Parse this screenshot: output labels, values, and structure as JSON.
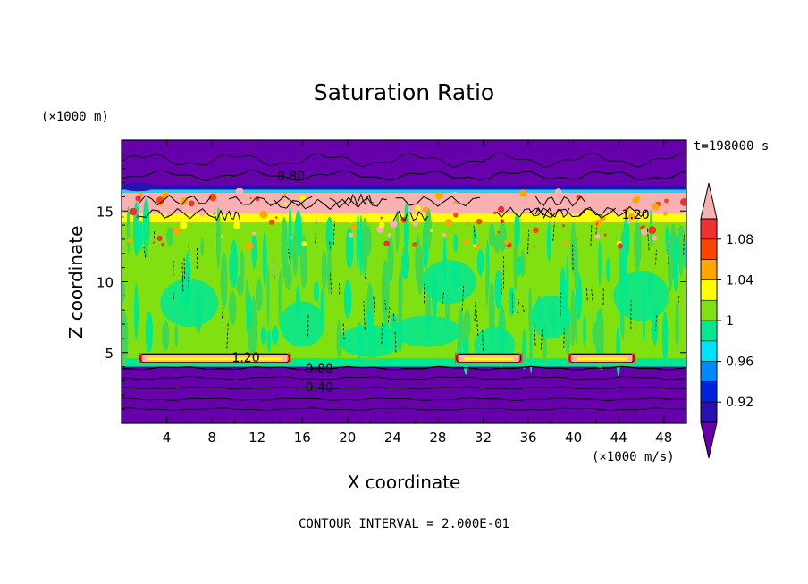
{
  "chart_data": {
    "type": "heatmap",
    "title": "Saturation Ratio",
    "xlabel": "X coordinate",
    "ylabel": "Z coordinate",
    "x_unit_label": "(×1000 m/s)",
    "y_unit_label": "(×1000 m)",
    "time_label": "t=198000 s",
    "footer": "CONTOUR INTERVAL = 2.000E-01",
    "xlim": [
      0,
      50
    ],
    "ylim": [
      0,
      20
    ],
    "x_ticks": [
      4,
      8,
      12,
      16,
      20,
      24,
      28,
      32,
      36,
      40,
      44,
      48
    ],
    "y_ticks": [
      5,
      10,
      15
    ],
    "colorbar": {
      "levels": [
        0.9,
        0.92,
        0.94,
        0.96,
        0.98,
        1.0,
        1.02,
        1.04,
        1.06,
        1.08,
        1.1
      ],
      "tick_labels": [
        "0.92",
        "0.96",
        "1",
        "1.04",
        "1.08"
      ],
      "tick_values": [
        0.92,
        0.96,
        1.0,
        1.04,
        1.08
      ],
      "colors": [
        "#6600aa",
        "#2a10b0",
        "#0022dd",
        "#0088ff",
        "#00e0ff",
        "#00e890",
        "#80e010",
        "#ffff00",
        "#ffa500",
        "#ff4400",
        "#f03030",
        "#f8b0b0"
      ]
    },
    "contour_labels": [
      {
        "text": "0.80",
        "x": 15,
        "z": 17.4
      },
      {
        "text": "1.20",
        "x": 45.5,
        "z": 14.7
      },
      {
        "text": "1.20",
        "x": 11,
        "z": 4.6
      },
      {
        "text": "0.80",
        "x": 17.5,
        "z": 3.8
      },
      {
        "text": "0.40",
        "x": 17.5,
        "z": 2.5
      }
    ]
  }
}
